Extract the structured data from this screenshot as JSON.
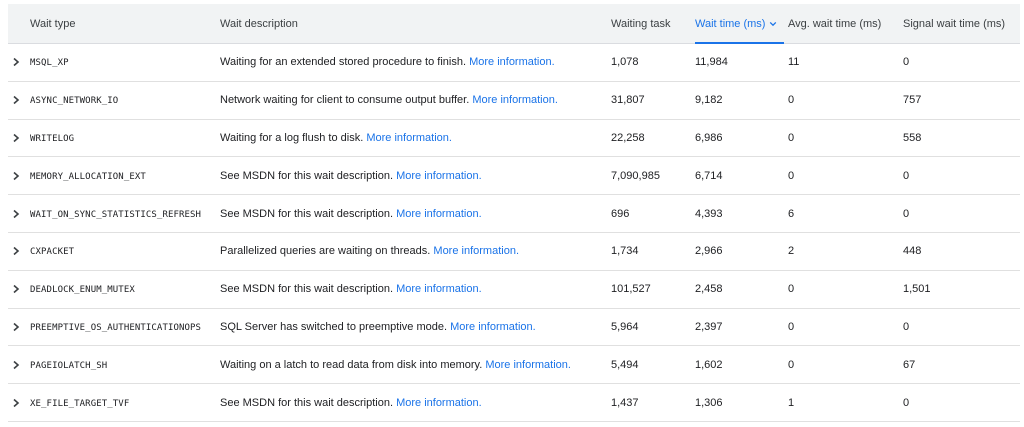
{
  "header": {
    "wait_type": "Wait type",
    "wait_description": "Wait description",
    "waiting_task": "Waiting task",
    "wait_time": "Wait time (ms)",
    "avg_wait_time": "Avg. wait time (ms)",
    "signal_wait_time": "Signal wait time (ms)"
  },
  "link_text": "More information.",
  "rows": [
    {
      "type": "MSQL_XP",
      "desc": "Waiting for an extended stored procedure to finish.",
      "task": "1,078",
      "time": "11,984",
      "avg": "11",
      "signal": "0"
    },
    {
      "type": "ASYNC_NETWORK_IO",
      "desc": "Network waiting for client to consume output buffer.",
      "task": "31,807",
      "time": "9,182",
      "avg": "0",
      "signal": "757"
    },
    {
      "type": "WRITELOG",
      "desc": "Waiting for a log flush to disk.",
      "task": "22,258",
      "time": "6,986",
      "avg": "0",
      "signal": "558"
    },
    {
      "type": "MEMORY_ALLOCATION_EXT",
      "desc": "See MSDN for this wait description.",
      "task": "7,090,985",
      "time": "6,714",
      "avg": "0",
      "signal": "0"
    },
    {
      "type": "WAIT_ON_SYNC_STATISTICS_REFRESH",
      "desc": "See MSDN for this wait description.",
      "task": "696",
      "time": "4,393",
      "avg": "6",
      "signal": "0"
    },
    {
      "type": "CXPACKET",
      "desc": "Parallelized queries are waiting on threads.",
      "task": "1,734",
      "time": "2,966",
      "avg": "2",
      "signal": "448"
    },
    {
      "type": "DEADLOCK_ENUM_MUTEX",
      "desc": "See MSDN for this wait description.",
      "task": "101,527",
      "time": "2,458",
      "avg": "0",
      "signal": "1,501"
    },
    {
      "type": "PREEMPTIVE_OS_AUTHENTICATIONOPS",
      "desc": "SQL Server has switched to preemptive mode.",
      "task": "5,964",
      "time": "2,397",
      "avg": "0",
      "signal": "0"
    },
    {
      "type": "PAGEIOLATCH_SH",
      "desc": "Waiting on a latch to read data from disk into memory.",
      "task": "5,494",
      "time": "1,602",
      "avg": "0",
      "signal": "67"
    },
    {
      "type": "XE_FILE_TARGET_TVF",
      "desc": "See MSDN for this wait description.",
      "task": "1,437",
      "time": "1,306",
      "avg": "1",
      "signal": "0"
    }
  ]
}
